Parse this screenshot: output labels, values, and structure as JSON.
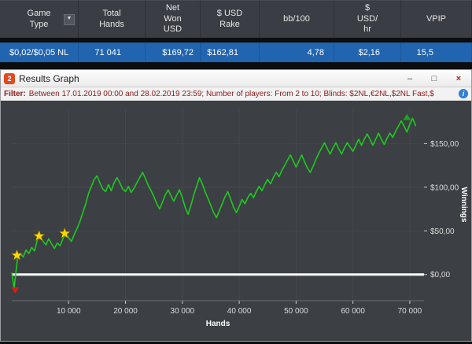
{
  "table": {
    "columns": [
      "Game\nType",
      "Total\nHands",
      "Net\nWon\nUSD",
      "$ USD\nRake",
      "bb/100",
      "$\nUSD/\nhr",
      "VPIP"
    ],
    "row": {
      "game_type": "$0,02/$0,05 NL",
      "total_hands": "71 041",
      "net_won": "$169,72",
      "rake": "$162,81",
      "bb100": "4,78",
      "usd_hr": "$2,16",
      "vpip": "15,5"
    },
    "dropdown_glyph": "▼"
  },
  "window": {
    "title": "Results Graph",
    "logo_text": "2",
    "minimize_glyph": "–",
    "maximize_glyph": "□",
    "close_glyph": "×"
  },
  "filter": {
    "label": "Filter:",
    "text": "Between 17.01.2019 00:00 and 28.02.2019 23:59; Number of players: From 2 to 10; Blinds: $2NL,€2NL,$2NL Fast,$",
    "info_glyph": "i"
  },
  "chart_data": {
    "type": "line",
    "title": "",
    "xlabel": "Hands",
    "ylabel": "Winnings",
    "xlim": [
      0,
      72500
    ],
    "ylim": [
      -30,
      190
    ],
    "grid": true,
    "legend": false,
    "zero_line": 0,
    "x_ticks": [
      {
        "v": 10000,
        "label": "10 000"
      },
      {
        "v": 20000,
        "label": "20 000"
      },
      {
        "v": 30000,
        "label": "30 000"
      },
      {
        "v": 40000,
        "label": "40 000"
      },
      {
        "v": 50000,
        "label": "50 000"
      },
      {
        "v": 60000,
        "label": "60 000"
      },
      {
        "v": 70000,
        "label": "70 000"
      }
    ],
    "y_ticks": [
      {
        "v": 0,
        "label": "$0,00"
      },
      {
        "v": 50,
        "label": "$50,00"
      },
      {
        "v": 100,
        "label": "$100,00"
      },
      {
        "v": 150,
        "label": "$150,00"
      }
    ],
    "colors": {
      "line": "#1dcb1d",
      "grid": "#45484e",
      "zero_line": "#ffffff",
      "star": "#ffd700",
      "start_marker": "#cc2020",
      "end_marker": "#18a518",
      "background": "#3c3f44",
      "tick_text": "#dcdcdc"
    },
    "series": [
      {
        "name": "Winnings",
        "points": [
          [
            0,
            2
          ],
          [
            400,
            -16
          ],
          [
            1000,
            18
          ],
          [
            1500,
            24
          ],
          [
            2000,
            20
          ],
          [
            2500,
            28
          ],
          [
            3000,
            24
          ],
          [
            3500,
            31
          ],
          [
            4000,
            27
          ],
          [
            4500,
            40
          ],
          [
            5000,
            44
          ],
          [
            5500,
            38
          ],
          [
            6000,
            34
          ],
          [
            6500,
            41
          ],
          [
            7000,
            35
          ],
          [
            7500,
            30
          ],
          [
            8000,
            36
          ],
          [
            8500,
            33
          ],
          [
            9000,
            41
          ],
          [
            9500,
            47
          ],
          [
            10000,
            42
          ],
          [
            10500,
            38
          ],
          [
            11000,
            46
          ],
          [
            11500,
            53
          ],
          [
            12000,
            61
          ],
          [
            12500,
            71
          ],
          [
            13000,
            81
          ],
          [
            13500,
            93
          ],
          [
            14000,
            101
          ],
          [
            14500,
            109
          ],
          [
            15000,
            113
          ],
          [
            15500,
            105
          ],
          [
            16000,
            98
          ],
          [
            16500,
            95
          ],
          [
            17000,
            103
          ],
          [
            17500,
            96
          ],
          [
            18000,
            105
          ],
          [
            18500,
            111
          ],
          [
            19000,
            105
          ],
          [
            19500,
            98
          ],
          [
            20000,
            95
          ],
          [
            20500,
            101
          ],
          [
            21000,
            94
          ],
          [
            21500,
            99
          ],
          [
            22000,
            105
          ],
          [
            22500,
            111
          ],
          [
            23000,
            117
          ],
          [
            23500,
            110
          ],
          [
            24000,
            102
          ],
          [
            24500,
            96
          ],
          [
            25000,
            89
          ],
          [
            25500,
            81
          ],
          [
            26000,
            75
          ],
          [
            26500,
            83
          ],
          [
            27000,
            91
          ],
          [
            27500,
            97
          ],
          [
            28000,
            90
          ],
          [
            28500,
            84
          ],
          [
            29000,
            91
          ],
          [
            29500,
            97
          ],
          [
            30000,
            88
          ],
          [
            30500,
            77
          ],
          [
            31000,
            69
          ],
          [
            31500,
            79
          ],
          [
            32000,
            91
          ],
          [
            32500,
            101
          ],
          [
            33000,
            111
          ],
          [
            33500,
            104
          ],
          [
            34000,
            95
          ],
          [
            34500,
            87
          ],
          [
            35000,
            79
          ],
          [
            35500,
            71
          ],
          [
            36000,
            65
          ],
          [
            36500,
            73
          ],
          [
            37000,
            81
          ],
          [
            37500,
            89
          ],
          [
            38000,
            95
          ],
          [
            38500,
            86
          ],
          [
            39000,
            77
          ],
          [
            39500,
            71
          ],
          [
            40000,
            78
          ],
          [
            40500,
            86
          ],
          [
            41000,
            81
          ],
          [
            41500,
            88
          ],
          [
            42000,
            93
          ],
          [
            42500,
            88
          ],
          [
            43000,
            95
          ],
          [
            43500,
            101
          ],
          [
            44000,
            96
          ],
          [
            44500,
            103
          ],
          [
            45000,
            109
          ],
          [
            45500,
            104
          ],
          [
            46000,
            111
          ],
          [
            46500,
            117
          ],
          [
            47000,
            112
          ],
          [
            47500,
            119
          ],
          [
            48000,
            125
          ],
          [
            48500,
            131
          ],
          [
            49000,
            137
          ],
          [
            49500,
            130
          ],
          [
            50000,
            123
          ],
          [
            50500,
            130
          ],
          [
            51000,
            137
          ],
          [
            51500,
            129
          ],
          [
            52000,
            122
          ],
          [
            52500,
            117
          ],
          [
            53000,
            124
          ],
          [
            53500,
            132
          ],
          [
            54000,
            139
          ],
          [
            54500,
            145
          ],
          [
            55000,
            151
          ],
          [
            55500,
            144
          ],
          [
            56000,
            138
          ],
          [
            56500,
            145
          ],
          [
            57000,
            151
          ],
          [
            57500,
            144
          ],
          [
            58000,
            138
          ],
          [
            58500,
            145
          ],
          [
            59000,
            151
          ],
          [
            59500,
            146
          ],
          [
            60000,
            141
          ],
          [
            60500,
            148
          ],
          [
            61000,
            155
          ],
          [
            61500,
            148
          ],
          [
            62000,
            155
          ],
          [
            62500,
            161
          ],
          [
            63000,
            155
          ],
          [
            63500,
            148
          ],
          [
            64000,
            155
          ],
          [
            64500,
            162
          ],
          [
            65000,
            155
          ],
          [
            65500,
            149
          ],
          [
            66000,
            156
          ],
          [
            66500,
            162
          ],
          [
            67000,
            157
          ],
          [
            67500,
            164
          ],
          [
            68000,
            170
          ],
          [
            68500,
            176
          ],
          [
            69000,
            170
          ],
          [
            69500,
            163
          ],
          [
            70000,
            172
          ],
          [
            70500,
            179
          ],
          [
            71041,
            170
          ]
        ]
      }
    ],
    "markers": {
      "stars": [
        [
          900,
          22
        ],
        [
          4800,
          44
        ],
        [
          9300,
          47
        ]
      ],
      "start_triangle": [
        600,
        -22
      ],
      "end_triangle": [
        69500,
        184
      ]
    }
  }
}
